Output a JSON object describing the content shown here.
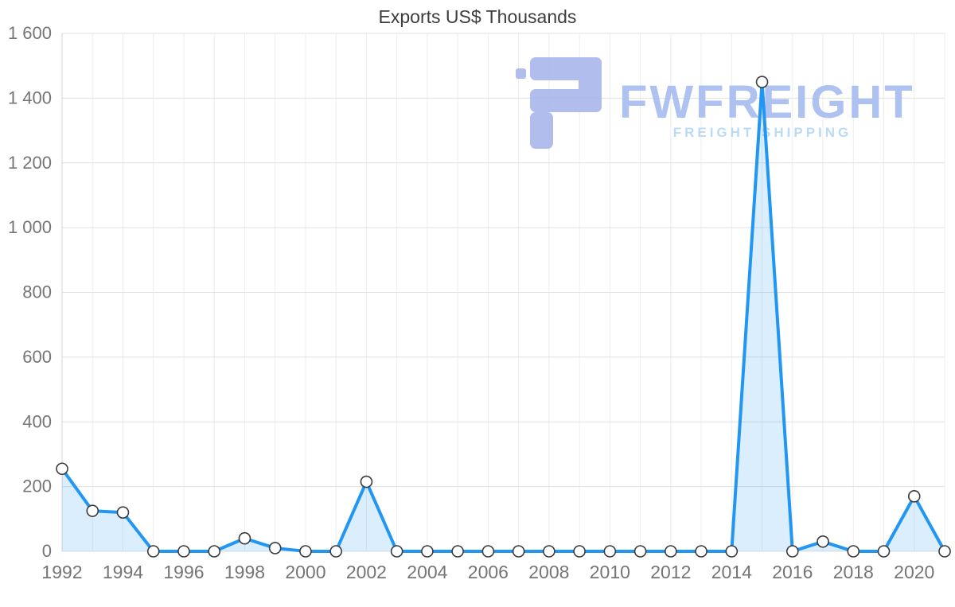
{
  "chart_data": {
    "type": "area",
    "title": "Exports US$ Thousands",
    "x": [
      1992,
      1993,
      1994,
      1995,
      1996,
      1997,
      1998,
      1999,
      2000,
      2001,
      2002,
      2003,
      2004,
      2005,
      2006,
      2007,
      2008,
      2009,
      2010,
      2011,
      2012,
      2013,
      2014,
      2015,
      2016,
      2017,
      2018,
      2019,
      2020,
      2021
    ],
    "values": [
      255,
      125,
      120,
      0,
      0,
      0,
      40,
      10,
      0,
      0,
      215,
      0,
      0,
      0,
      0,
      0,
      0,
      0,
      0,
      0,
      0,
      0,
      0,
      1450,
      0,
      30,
      0,
      0,
      170,
      0
    ],
    "ylim": [
      0,
      1600
    ],
    "ytick_interval": 200,
    "ytick_labels": [
      "0",
      "200",
      "400",
      "600",
      "800",
      "1 000",
      "1 200",
      "1 400",
      "1 600"
    ],
    "xtick_labels": [
      "1992",
      "1994",
      "1996",
      "1998",
      "2000",
      "2002",
      "2004",
      "2006",
      "2008",
      "2010",
      "2012",
      "2014",
      "2016",
      "2018",
      "2020"
    ],
    "xtick_step": 2,
    "grid": true,
    "legend": "none",
    "line_color": "#2196f3",
    "fill_color": "rgba(33,150,243,0.16)",
    "marker_fill": "#ffffff",
    "marker_stroke": "#3b3b3b",
    "grid_color": "#e0e0e0",
    "vgrid_color": "#ededed",
    "axis_line_color": "#d6d6d6",
    "tick_label_color": "#757575",
    "title_color": "#3d3d3d"
  },
  "watermark": {
    "brand": "FWFREIGHT",
    "tagline": "FREIGHT SHIPPING",
    "mark_color": "#a9b6ea",
    "brand_color": "#a6bcf0",
    "tagline_color": "#b4d6f2"
  }
}
